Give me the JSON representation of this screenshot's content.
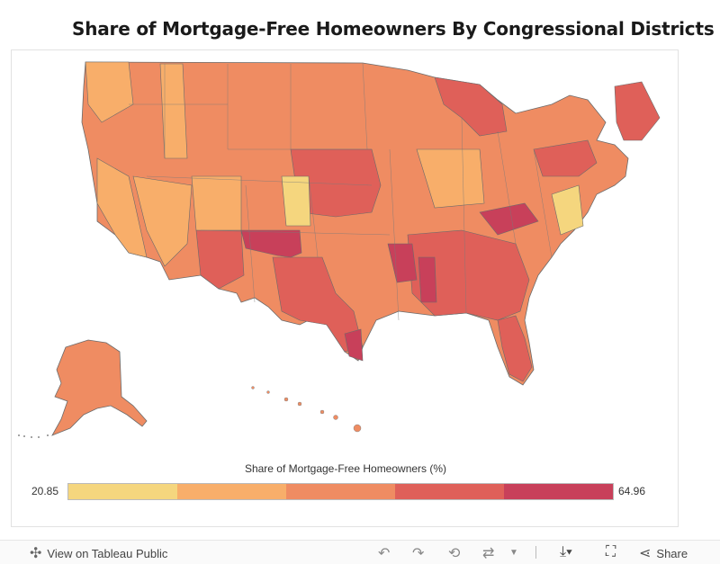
{
  "title": "Share of Mortgage-Free Homeowners By Congressional Districts",
  "legend": {
    "title": "Share of Mortgage-Free Homeowners (%)",
    "min": "20.85",
    "max": "64.96",
    "colors": [
      "#f5d67e",
      "#f8ae6a",
      "#ef8c62",
      "#df6059",
      "#c8405a"
    ]
  },
  "toolbar": {
    "view_label": "View on Tableau Public",
    "share_label": "Share",
    "icons": [
      "tableau-logo-icon",
      "undo-icon",
      "redo-icon",
      "revert-icon",
      "refresh-icon",
      "dropdown-icon",
      "download-icon",
      "fullscreen-icon",
      "share-icon"
    ]
  }
}
